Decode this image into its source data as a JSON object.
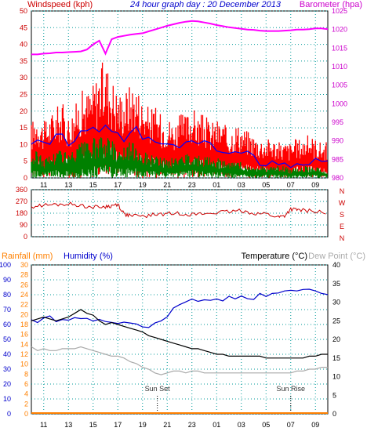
{
  "header": {
    "left_label": "Windspeed (kph)",
    "title": "24 hour graph day : 20 December 2013",
    "right_label": "Barometer (hpa)"
  },
  "colors": {
    "wind": "#ff0000",
    "wind_mid": "#0000ff",
    "wind_low": "#008000",
    "barometer": "#ff00ff",
    "direction": "#cc0000",
    "rain": "#ff8000",
    "humidity": "#0000cc",
    "temperature": "#000000",
    "dewpoint": "#aaaaaa",
    "grid": "#009999",
    "axis_red": "#cc0000",
    "axis_blue": "#0000cc"
  },
  "x_tick_labels": [
    "11",
    "13",
    "15",
    "17",
    "19",
    "21",
    "23",
    "01",
    "03",
    "05",
    "07",
    "09"
  ],
  "chart_data": [
    {
      "type": "line",
      "name": "wind-barometer",
      "x_hours": [
        10,
        10.5,
        11,
        11.5,
        12,
        12.5,
        13,
        13.5,
        14,
        14.5,
        15,
        15.5,
        16,
        16.5,
        17,
        17.5,
        18,
        18.5,
        19,
        19.5,
        20,
        20.5,
        21,
        21.5,
        22,
        22.5,
        23,
        23.5,
        24,
        24.5,
        25,
        25.5,
        26,
        26.5,
        27,
        27.5,
        28,
        28.5,
        29,
        29.5,
        30,
        30.5,
        31,
        31.5,
        32,
        32.5,
        33,
        33.5,
        34
      ],
      "ylim_left": [
        0,
        50
      ],
      "ylim_right": [
        980,
        1025
      ],
      "y_ticks_left": [
        "0",
        "5",
        "10",
        "15",
        "20",
        "25",
        "30",
        "35",
        "40",
        "45",
        "50"
      ],
      "y_ticks_right": [
        "980",
        "985",
        "990",
        "995",
        "1000",
        "1005",
        "1010",
        "1015",
        "1020",
        "1025"
      ],
      "series": [
        {
          "color": "wind",
          "style": "band",
          "values": [
            14,
            17,
            14,
            16,
            18,
            19,
            16,
            18,
            22,
            22,
            24,
            28,
            30,
            26,
            22,
            22,
            24,
            24,
            20,
            18,
            18,
            16,
            16,
            14,
            16,
            16,
            18,
            16,
            16,
            14,
            15,
            14,
            12,
            14,
            13,
            12,
            11,
            10,
            10,
            10,
            9,
            9,
            9,
            10,
            10,
            11,
            10,
            9,
            9
          ]
        },
        {
          "color": "wind_mid",
          "style": "line",
          "values": [
            9,
            11,
            10,
            10,
            12,
            12,
            11,
            12,
            13,
            13,
            14,
            15,
            16,
            14,
            12,
            12,
            14,
            14,
            12,
            11,
            11,
            10,
            10,
            9,
            10,
            10,
            11,
            10,
            10,
            9,
            9,
            8,
            7,
            8,
            7,
            7,
            6,
            5,
            5,
            5,
            5,
            4,
            4,
            5,
            5,
            5,
            5,
            4,
            4
          ]
        },
        {
          "color": "wind_low",
          "style": "band",
          "values": [
            6,
            7,
            5,
            6,
            7,
            8,
            6,
            7,
            9,
            9,
            10,
            10,
            11,
            10,
            8,
            8,
            9,
            9,
            7,
            6,
            6,
            5,
            5,
            5,
            6,
            6,
            7,
            6,
            6,
            5,
            5,
            5,
            4,
            4,
            4,
            3,
            3,
            3,
            3,
            3,
            3,
            3,
            2,
            3,
            3,
            3,
            3,
            2,
            2
          ]
        },
        {
          "color": "barometer",
          "style": "line",
          "axis": "right",
          "values": [
            1013.3,
            1013.3,
            1013.5,
            1013.6,
            1013.8,
            1013.8,
            1013.9,
            1014.0,
            1014.1,
            1014.6,
            1016.0,
            1017.0,
            1013.5,
            1017.4,
            1018.0,
            1018.3,
            1018.6,
            1018.8,
            1019.0,
            1019.5,
            1020.0,
            1020.5,
            1021.0,
            1021.4,
            1021.8,
            1022.1,
            1022.3,
            1022.2,
            1021.9,
            1021.6,
            1021.2,
            1020.9,
            1020.6,
            1020.4,
            1020.2,
            1020.0,
            1019.9,
            1019.7,
            1019.6,
            1019.6,
            1019.6,
            1019.7,
            1019.8,
            1020.0,
            1020.0,
            1020.1,
            1020.3,
            1020.3,
            1020.1
          ]
        }
      ]
    },
    {
      "type": "line",
      "name": "wind-direction",
      "ylim": [
        0,
        360
      ],
      "y_ticks": [
        "0",
        "90",
        "180",
        "270",
        "360"
      ],
      "compass": [
        "N",
        "W",
        "S",
        "E",
        "N"
      ],
      "x_hours": [
        10,
        11,
        12,
        13,
        14,
        15,
        16,
        16.5,
        17,
        17.5,
        18,
        19,
        20,
        21,
        22,
        23,
        24,
        25,
        26,
        27,
        28,
        29,
        30,
        30.5,
        31,
        31.5,
        32,
        33,
        34
      ],
      "values": [
        230,
        240,
        245,
        250,
        240,
        225,
        230,
        235,
        250,
        175,
        160,
        155,
        170,
        175,
        180,
        170,
        175,
        185,
        190,
        200,
        180,
        175,
        150,
        160,
        210,
        205,
        200,
        195,
        180
      ]
    },
    {
      "type": "line",
      "name": "rain-humidity-temperature",
      "left_labels": [
        "Rainfall (mm)",
        "Humidity (%)"
      ],
      "right_labels": [
        "Temperature (°C)",
        "Dew Point (°C)"
      ],
      "ylim_humidity": [
        0,
        100
      ],
      "ylim_rain": [
        0,
        30
      ],
      "ylim_temp": [
        0,
        40
      ],
      "y_ticks_humidity": [
        "0",
        "10",
        "20",
        "30",
        "40",
        "50",
        "60",
        "70",
        "80",
        "90",
        "100"
      ],
      "y_ticks_rain": [
        "0",
        "2",
        "4",
        "6",
        "8",
        "10",
        "12",
        "14",
        "16",
        "18",
        "20",
        "22",
        "24",
        "26",
        "28",
        "30"
      ],
      "y_ticks_temp": [
        "0",
        "5",
        "10",
        "15",
        "20",
        "25",
        "30",
        "35",
        "40"
      ],
      "annotations": [
        {
          "label": "Sun Set",
          "hour": 20.2
        },
        {
          "label": "Sun Rise",
          "hour": 31.0
        }
      ],
      "x_hours": [
        10,
        10.5,
        11,
        11.5,
        12,
        12.5,
        13,
        13.5,
        14,
        14.5,
        15,
        15.5,
        16,
        16.5,
        17,
        17.5,
        18,
        18.5,
        19,
        19.5,
        20,
        20.5,
        21,
        21.5,
        22,
        22.5,
        23,
        23.5,
        24,
        24.5,
        25,
        25.5,
        26,
        26.5,
        27,
        27.5,
        28,
        28.5,
        29,
        29.5,
        30,
        30.5,
        31,
        31.5,
        32,
        32.5,
        33,
        33.5,
        34
      ],
      "series": [
        {
          "name_ref": "humidity",
          "color": "humidity",
          "values": [
            64,
            62,
            64,
            65,
            63,
            64,
            63,
            64,
            65,
            64,
            62,
            63,
            62,
            62,
            61,
            61,
            60,
            60,
            58,
            59,
            60,
            62,
            66,
            71,
            74,
            75,
            76,
            75,
            76,
            76,
            77,
            77,
            78,
            78,
            78,
            78,
            78,
            80,
            80,
            81,
            82,
            82,
            82,
            83,
            83,
            83,
            82,
            81,
            80
          ]
        },
        {
          "name_ref": "temperature",
          "color": "temperature",
          "axis": "temp",
          "values": [
            25,
            25.5,
            26,
            25.5,
            25,
            25.5,
            26,
            27,
            28,
            27,
            26.5,
            25,
            24,
            24.5,
            24,
            23.5,
            23,
            22.5,
            22,
            21,
            20.5,
            20,
            19.5,
            19,
            18.5,
            18,
            17.5,
            17.5,
            17,
            16.5,
            16,
            16,
            15.5,
            15.5,
            15.5,
            15.5,
            15.5,
            15.5,
            15,
            15,
            15,
            15,
            15,
            15,
            15,
            15.5,
            15.5,
            16,
            16
          ]
        },
        {
          "name_ref": "dewpoint",
          "color": "dewpoint",
          "axis": "temp",
          "values": [
            18,
            17,
            17.5,
            17,
            17,
            17.5,
            17.5,
            17.5,
            18,
            17.5,
            17,
            16.5,
            16,
            15.5,
            15.5,
            15,
            14,
            13.5,
            12.5,
            12,
            11,
            10.5,
            11,
            11.5,
            11.5,
            11,
            11.5,
            11.5,
            11,
            11,
            11,
            11,
            11,
            11,
            11,
            11,
            11,
            11,
            11,
            11,
            11,
            11,
            11,
            11.5,
            11.5,
            12,
            12,
            12.5,
            12.5
          ]
        },
        {
          "name_ref": "rain",
          "color": "rain",
          "axis": "rain",
          "values": [
            0,
            0,
            0,
            0,
            0,
            0,
            0,
            0,
            0,
            0,
            0,
            0,
            0,
            0,
            0,
            0,
            0,
            0,
            0,
            0,
            0,
            0,
            0,
            0,
            0,
            0,
            0,
            0,
            0,
            0,
            0,
            0,
            0,
            0,
            0,
            0,
            0,
            0,
            0,
            0,
            0,
            0,
            0,
            0,
            0,
            0,
            0,
            0,
            0
          ]
        }
      ]
    }
  ]
}
